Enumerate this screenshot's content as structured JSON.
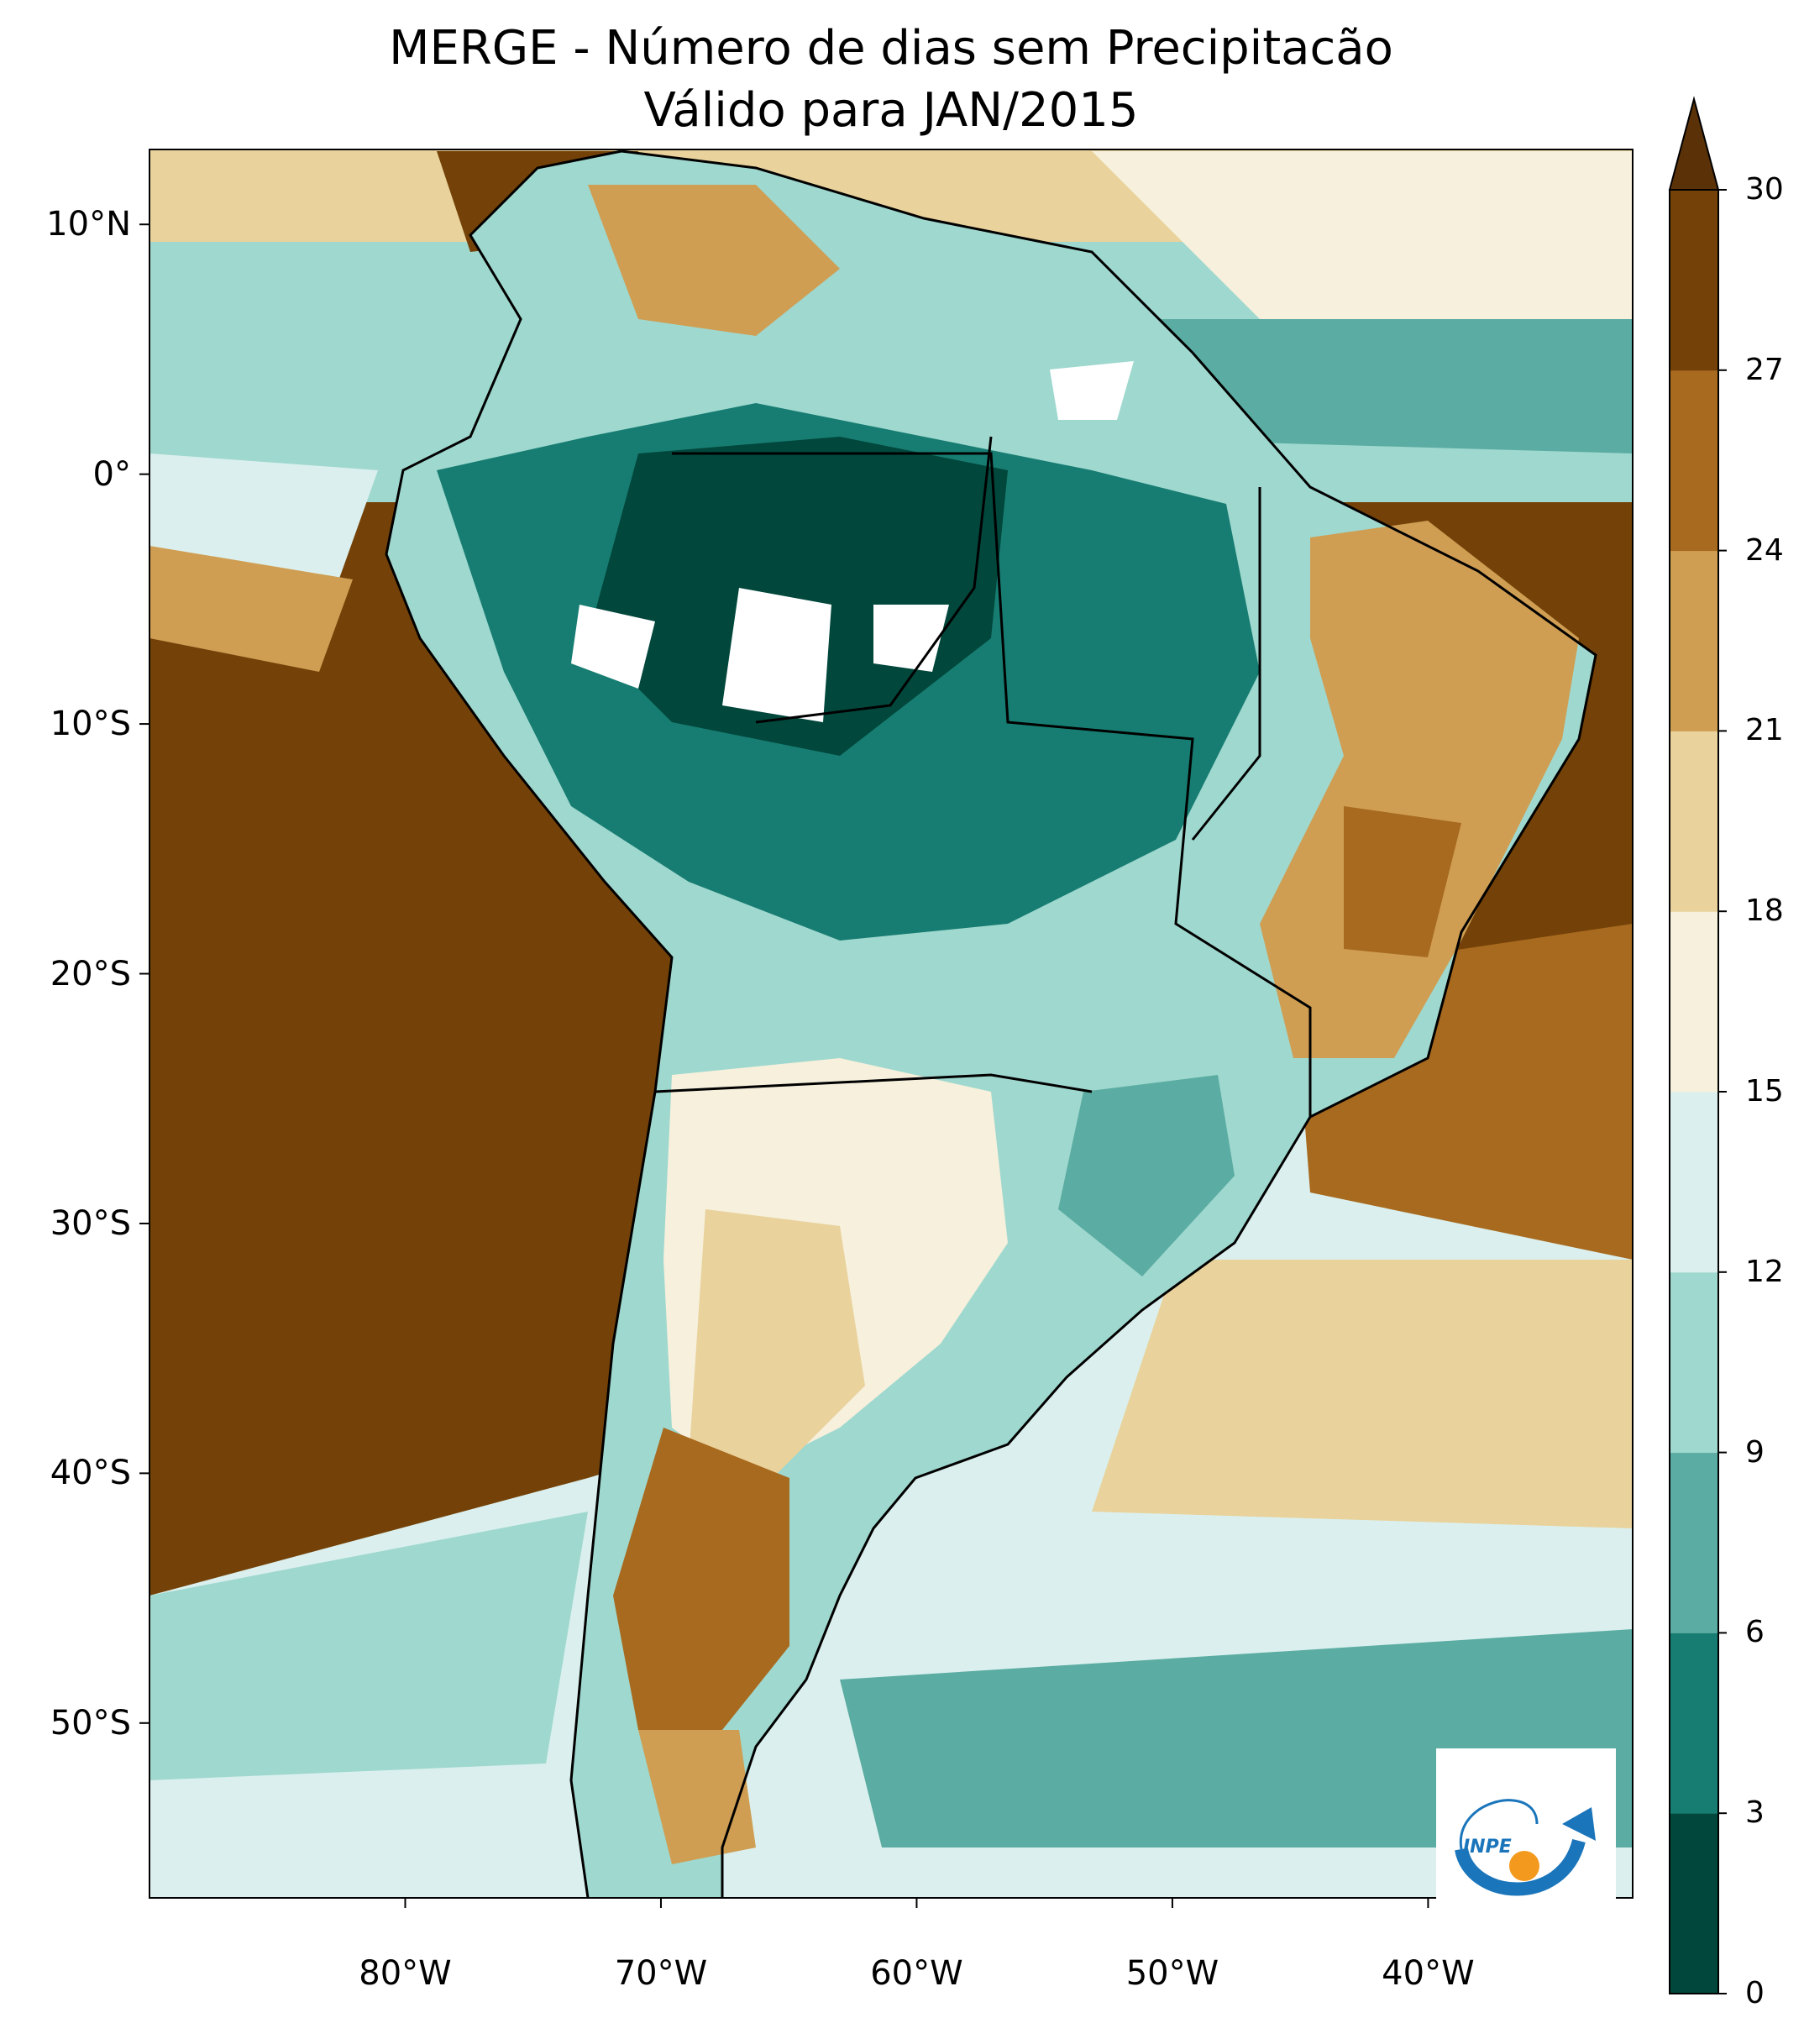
{
  "title_line1": "MERGE - Número de dias sem Precipitacão",
  "title_line2": "Válido para JAN/2015",
  "lat_ticks": [
    {
      "label": "10°N",
      "value": 10
    },
    {
      "label": "0°",
      "value": 0
    },
    {
      "label": "10°S",
      "value": -10
    },
    {
      "label": "20°S",
      "value": -20
    },
    {
      "label": "30°S",
      "value": -30
    },
    {
      "label": "40°S",
      "value": -40
    },
    {
      "label": "50°S",
      "value": -50
    }
  ],
  "lon_ticks": [
    {
      "label": "80°W",
      "value": -80
    },
    {
      "label": "70°W",
      "value": -70
    },
    {
      "label": "60°W",
      "value": -60
    },
    {
      "label": "50°W",
      "value": -50
    },
    {
      "label": "40°W",
      "value": -40
    }
  ],
  "extent": {
    "lon": [
      -90,
      -32
    ],
    "lat": [
      -57,
      13
    ]
  },
  "colorbar": {
    "levels": [
      0,
      3,
      6,
      9,
      12,
      15,
      18,
      21,
      24,
      27,
      30
    ],
    "colors": [
      "#01473c",
      "#177d72",
      "#5baca2",
      "#9fd8cf",
      "#dbf0ee",
      "#f6f0dc",
      "#e9d29b",
      "#cf9e53",
      "#a86a1f",
      "#744208"
    ],
    "extend_color": "#5b3208"
  },
  "logo": {
    "text": "INPE",
    "primary_color": "#1a75bb",
    "accent_color": "#f39a1e"
  }
}
